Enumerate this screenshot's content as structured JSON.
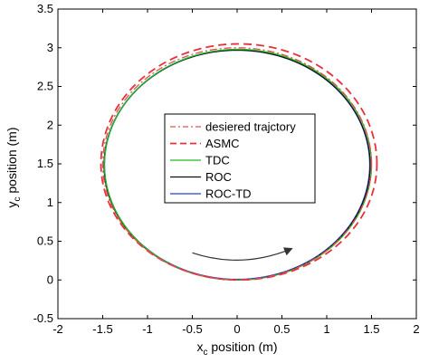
{
  "chart_data": {
    "type": "line",
    "xlabel": "x",
    "xlabel_sub": "c",
    "xlabel_rest": " position (m)",
    "ylabel": "y",
    "ylabel_sub": "c",
    "ylabel_rest": " position (m)",
    "xlim": [
      -2,
      2
    ],
    "ylim": [
      -0.5,
      3.5
    ],
    "xticks": [
      -2,
      -1.5,
      -1,
      -0.5,
      0,
      0.5,
      1,
      1.5,
      2
    ],
    "xtick_labels": [
      "-2",
      "-1.5",
      "-1",
      "-0.5",
      "0",
      "0.5",
      "1",
      "1.5",
      "2"
    ],
    "yticks": [
      -0.5,
      0,
      0.5,
      1,
      1.5,
      2,
      2.5,
      3,
      3.5
    ],
    "ytick_labels": [
      "-0.5",
      "0",
      "0.5",
      "1",
      "1.5",
      "2",
      "2.5",
      "3",
      "3.5"
    ],
    "grid": false,
    "legend_position": "center",
    "series": [
      {
        "name": "desiered trajctory",
        "color": "#e05050",
        "style": "dashdot",
        "center": [
          0,
          1.5
        ],
        "radius": 1.5
      },
      {
        "name": "ASMC",
        "color": "#e8303c",
        "style": "dashed",
        "center": [
          0.02,
          1.5
        ],
        "rx": 1.54,
        "ry_top": 1.55,
        "ry_bottom": 1.5
      },
      {
        "name": "TDC",
        "color": "#22bb22",
        "style": "solid",
        "center": [
          0.01,
          1.49
        ],
        "radius": 1.49
      },
      {
        "name": "ROC",
        "color": "#111111",
        "style": "solid",
        "center": [
          0,
          1.485
        ],
        "radius": 1.485
      },
      {
        "name": "ROC-TD",
        "color": "#2244cc",
        "style": "solid",
        "center": [
          0,
          1.488
        ],
        "radius": 1.48
      }
    ],
    "annotations": [
      {
        "type": "arrow",
        "description": "direction",
        "from": [
          -0.5,
          0.35
        ],
        "to": [
          0.6,
          0.4
        ]
      }
    ]
  }
}
